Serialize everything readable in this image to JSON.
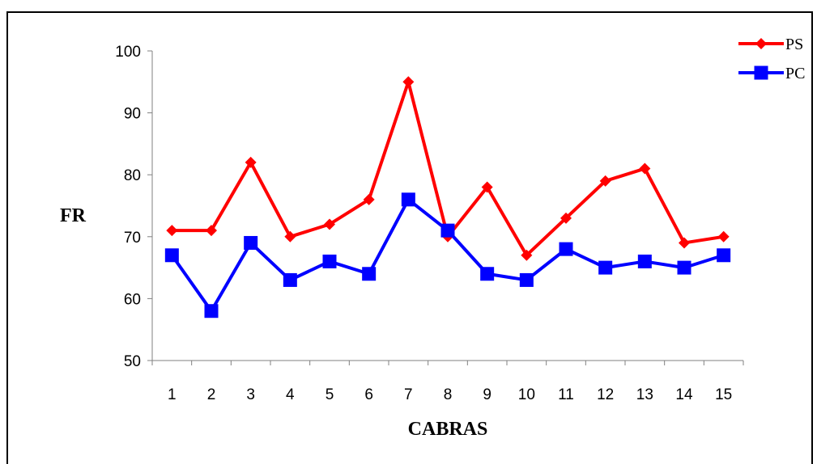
{
  "chart_data": {
    "type": "line",
    "title": "",
    "xlabel": "CABRAS",
    "ylabel": "FR",
    "categories": [
      "1",
      "2",
      "3",
      "4",
      "5",
      "6",
      "7",
      "8",
      "9",
      "10",
      "11",
      "12",
      "13",
      "14",
      "15"
    ],
    "ylim": [
      50,
      100
    ],
    "yticks": [
      50,
      60,
      70,
      80,
      90,
      100
    ],
    "grid": false,
    "legend_position": "top-right",
    "series": [
      {
        "name": "PS",
        "color": "#ff0000",
        "marker": "diamond",
        "values": [
          71,
          71,
          82,
          70,
          72,
          76,
          95,
          70,
          78,
          67,
          73,
          79,
          81,
          69,
          70
        ]
      },
      {
        "name": "PC",
        "color": "#0000ff",
        "marker": "square",
        "values": [
          67,
          58,
          69,
          63,
          66,
          64,
          76,
          71,
          64,
          63,
          68,
          65,
          66,
          65,
          67
        ]
      }
    ]
  }
}
